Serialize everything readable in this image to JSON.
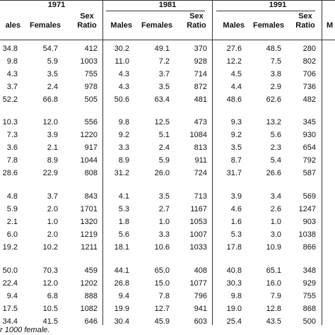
{
  "table": {
    "years": [
      "1971",
      "1981",
      "1991"
    ],
    "cut_header": "M",
    "columns": [
      "ales",
      "Females",
      "Sex Ratio",
      "Males",
      "Females",
      "Sex Ratio",
      "Males",
      "Females",
      "Sex Ratio"
    ],
    "groups": [
      [
        [
          "34.8",
          "54.7",
          "412",
          "30.2",
          "49.1",
          "370",
          "27.6",
          "48.5",
          "280"
        ],
        [
          "9.8",
          "5.9",
          "1003",
          "11.0",
          "7.2",
          "928",
          "12.2",
          "7.5",
          "802"
        ],
        [
          "4.3",
          "3.5",
          "755",
          "4.3",
          "3.7",
          "714",
          "4.5",
          "3.8",
          "706"
        ],
        [
          "3.7",
          "2.4",
          "978",
          "4.3",
          "3.5",
          "872",
          "4.4",
          "2.9",
          "736"
        ],
        [
          "52.2",
          "66.8",
          "505",
          "50.6",
          "63.4",
          "481",
          "48.6",
          "62.6",
          "482"
        ]
      ],
      [
        [
          "10.3",
          "12.0",
          "556",
          "9.8",
          "12.5",
          "473",
          "9.3",
          "13.2",
          "345"
        ],
        [
          "7.3",
          "3.9",
          "1220",
          "9.2",
          "5.1",
          "1084",
          "9.2",
          "5.6",
          "930"
        ],
        [
          "3.6",
          "2.1",
          "917",
          "3.3",
          "2.4",
          "813",
          "3.5",
          "2.3",
          "654"
        ],
        [
          "7.8",
          "8.9",
          "1044",
          "8.9",
          "5.9",
          "911",
          "8.7",
          "5.4",
          "792"
        ],
        [
          "28.6",
          "22.9",
          "808",
          "31.2",
          "26.0",
          "724",
          "31.7",
          "26.6",
          "587"
        ]
      ],
      [
        [
          "4.8",
          "3.7",
          "843",
          "4.1",
          "3.5",
          "713",
          "3.9",
          "3.4",
          "569"
        ],
        [
          "5.9",
          "2.0",
          "1701",
          "5.3",
          "2.7",
          "1167",
          "4.6",
          "2.6",
          "1247"
        ],
        [
          "2.1",
          "1.0",
          "1320",
          "1.8",
          "1.0",
          "1053",
          "1.6",
          "1.0",
          "903"
        ],
        [
          "6.0",
          "2.0",
          "1219",
          "5.6",
          "3.3",
          "1007",
          "5.3",
          "3.0",
          "1038"
        ],
        [
          "19.2",
          "10.2",
          "1211",
          "18.1",
          "10.6",
          "1033",
          "17.8",
          "10.9",
          "866"
        ]
      ],
      [
        [
          "50.0",
          "70.3",
          "459",
          "44.1",
          "65.0",
          "408",
          "40.8",
          "65.1",
          "348"
        ],
        [
          "22.4",
          "12.0",
          "1202",
          "26.8",
          "15.0",
          "1077",
          "30.3",
          "16.0",
          "929"
        ],
        [
          "9.4",
          "6.8",
          "888",
          "9.4",
          "7.8",
          "796",
          "9.8",
          "7.9",
          "755"
        ],
        [
          "17.5",
          "10.5",
          "1082",
          "19.9",
          "12.7",
          "941",
          "19.0",
          "12.8",
          "868"
        ],
        [
          "34.4",
          "41.5",
          "646",
          "30.4",
          "45.9",
          "603",
          "25.4",
          "43.5",
          "500"
        ]
      ]
    ],
    "footnote": "r 1000 female."
  }
}
